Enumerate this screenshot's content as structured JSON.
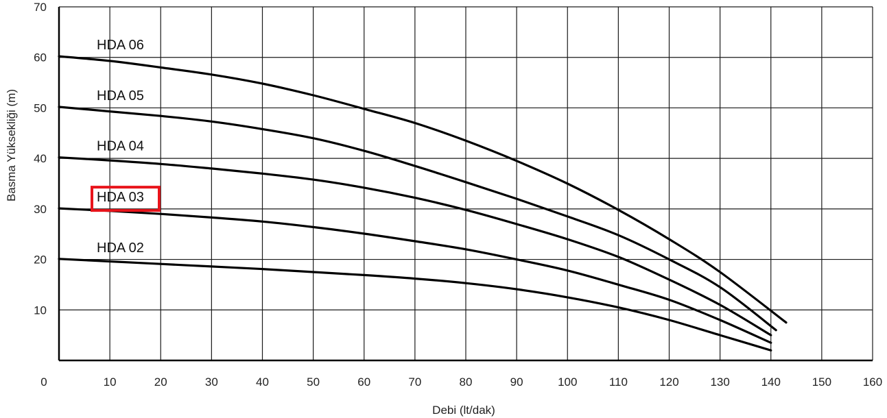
{
  "chart_data": {
    "type": "line",
    "title": "",
    "xlabel": "Debi (lt/dak)",
    "ylabel": "Basma Yüksekliği (m)",
    "xlim": [
      0,
      160
    ],
    "ylim": [
      0,
      70
    ],
    "x_ticks": [
      "0",
      "10",
      "20",
      "30",
      "40",
      "50",
      "60",
      "70",
      "80",
      "90",
      "100",
      "110",
      "120",
      "130",
      "140",
      "150",
      "160"
    ],
    "y_ticks": [
      "10",
      "20",
      "30",
      "40",
      "50",
      "60",
      "70"
    ],
    "grid": true,
    "series": [
      {
        "name": "HDA 06",
        "x": [
          0,
          10,
          20,
          30,
          40,
          50,
          60,
          70,
          80,
          90,
          100,
          110,
          120,
          130,
          143
        ],
        "values": [
          60.2,
          59.3,
          58.0,
          56.6,
          54.8,
          52.5,
          49.8,
          47.0,
          43.5,
          39.5,
          35.0,
          29.8,
          24.0,
          17.5,
          7.5
        ]
      },
      {
        "name": "HDA 05",
        "x": [
          0,
          10,
          20,
          30,
          40,
          50,
          60,
          70,
          80,
          90,
          100,
          110,
          120,
          130,
          141
        ],
        "values": [
          50.2,
          49.3,
          48.4,
          47.3,
          45.8,
          44.0,
          41.5,
          38.5,
          35.3,
          32.0,
          28.5,
          24.8,
          20.0,
          14.5,
          6.0
        ]
      },
      {
        "name": "HDA 04",
        "x": [
          0,
          10,
          20,
          30,
          40,
          50,
          60,
          70,
          80,
          90,
          100,
          110,
          120,
          130,
          140
        ],
        "values": [
          40.2,
          39.6,
          38.9,
          38.0,
          37.0,
          35.8,
          34.2,
          32.2,
          29.8,
          27.0,
          24.0,
          20.5,
          16.0,
          11.0,
          5.0
        ]
      },
      {
        "name": "HDA 03",
        "x": [
          0,
          10,
          20,
          30,
          40,
          50,
          60,
          70,
          80,
          90,
          100,
          110,
          120,
          130,
          140
        ],
        "values": [
          30.1,
          29.6,
          29.0,
          28.3,
          27.5,
          26.4,
          25.1,
          23.6,
          22.0,
          20.0,
          17.8,
          15.0,
          12.0,
          8.0,
          3.5
        ]
      },
      {
        "name": "HDA 02",
        "x": [
          0,
          10,
          20,
          30,
          40,
          50,
          60,
          70,
          80,
          90,
          100,
          110,
          120,
          130,
          140
        ],
        "values": [
          20.1,
          19.6,
          19.1,
          18.6,
          18.1,
          17.5,
          16.9,
          16.2,
          15.3,
          14.1,
          12.5,
          10.5,
          8.0,
          5.0,
          2.0
        ]
      }
    ],
    "highlighted_series": "HDA 03",
    "highlight_color": "#e8141b",
    "line_color": "#000000",
    "grid_color": "#1a1a1a"
  }
}
